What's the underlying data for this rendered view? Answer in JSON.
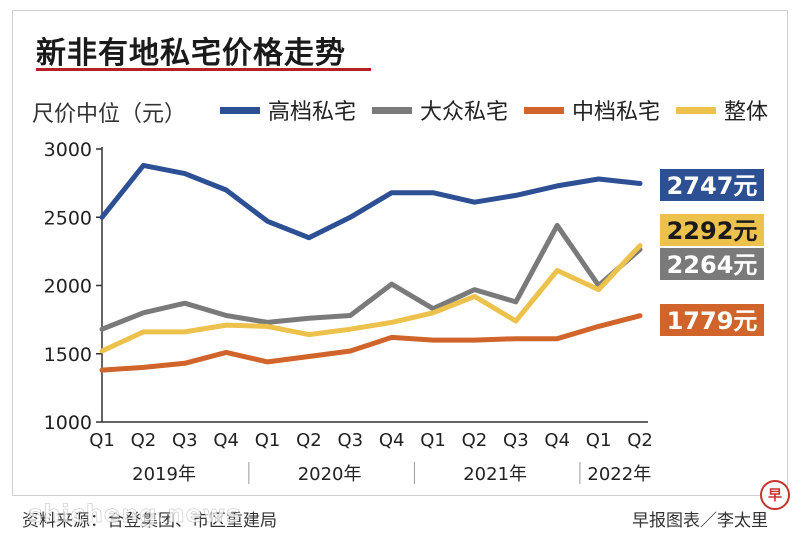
{
  "title": "新非有地私宅价格走势",
  "chart_data": {
    "type": "line",
    "title": "新非有地私宅价格走势",
    "ylabel": "尺价中位（元）",
    "xlabel": "",
    "ylim": [
      1000,
      3000
    ],
    "yticks": [
      1000,
      1500,
      2000,
      2500,
      3000
    ],
    "grid": false,
    "legend_position": "top",
    "categories": [
      "Q1",
      "Q2",
      "Q3",
      "Q4",
      "Q1",
      "Q2",
      "Q3",
      "Q4",
      "Q1",
      "Q2",
      "Q3",
      "Q4",
      "Q1",
      "Q2"
    ],
    "year_groups": [
      {
        "label": "2019年"
      },
      {
        "label": "2020年"
      },
      {
        "label": "2021年"
      },
      {
        "label": "2022年"
      }
    ],
    "series": [
      {
        "name": "高档私宅",
        "color": "#2d4f93",
        "values": [
          2500,
          2880,
          2820,
          2700,
          2470,
          2350,
          2500,
          2680,
          2680,
          2610,
          2660,
          2730,
          2780,
          2747
        ],
        "end_label": "2747元"
      },
      {
        "name": "大众私宅",
        "color": "#7a7a7a",
        "values": [
          1680,
          1800,
          1870,
          1780,
          1730,
          1760,
          1780,
          2010,
          1830,
          1970,
          1880,
          2440,
          2000,
          2264
        ],
        "end_label": "2264元"
      },
      {
        "name": "中档私宅",
        "color": "#d1642a",
        "values": [
          1380,
          1400,
          1430,
          1510,
          1440,
          1480,
          1520,
          1620,
          1600,
          1600,
          1610,
          1610,
          1700,
          1779
        ],
        "end_label": "1779元"
      },
      {
        "name": "整体",
        "color": "#ecc14c",
        "values": [
          1520,
          1660,
          1660,
          1710,
          1700,
          1640,
          1680,
          1730,
          1800,
          1920,
          1740,
          2110,
          1970,
          2292
        ],
        "end_label": "2292元"
      }
    ]
  },
  "footer": {
    "source": "资料来源：合登集团、市区重建局",
    "credit": "早报图表／李太里",
    "watermark": "shicheng.news",
    "logo": "早"
  }
}
